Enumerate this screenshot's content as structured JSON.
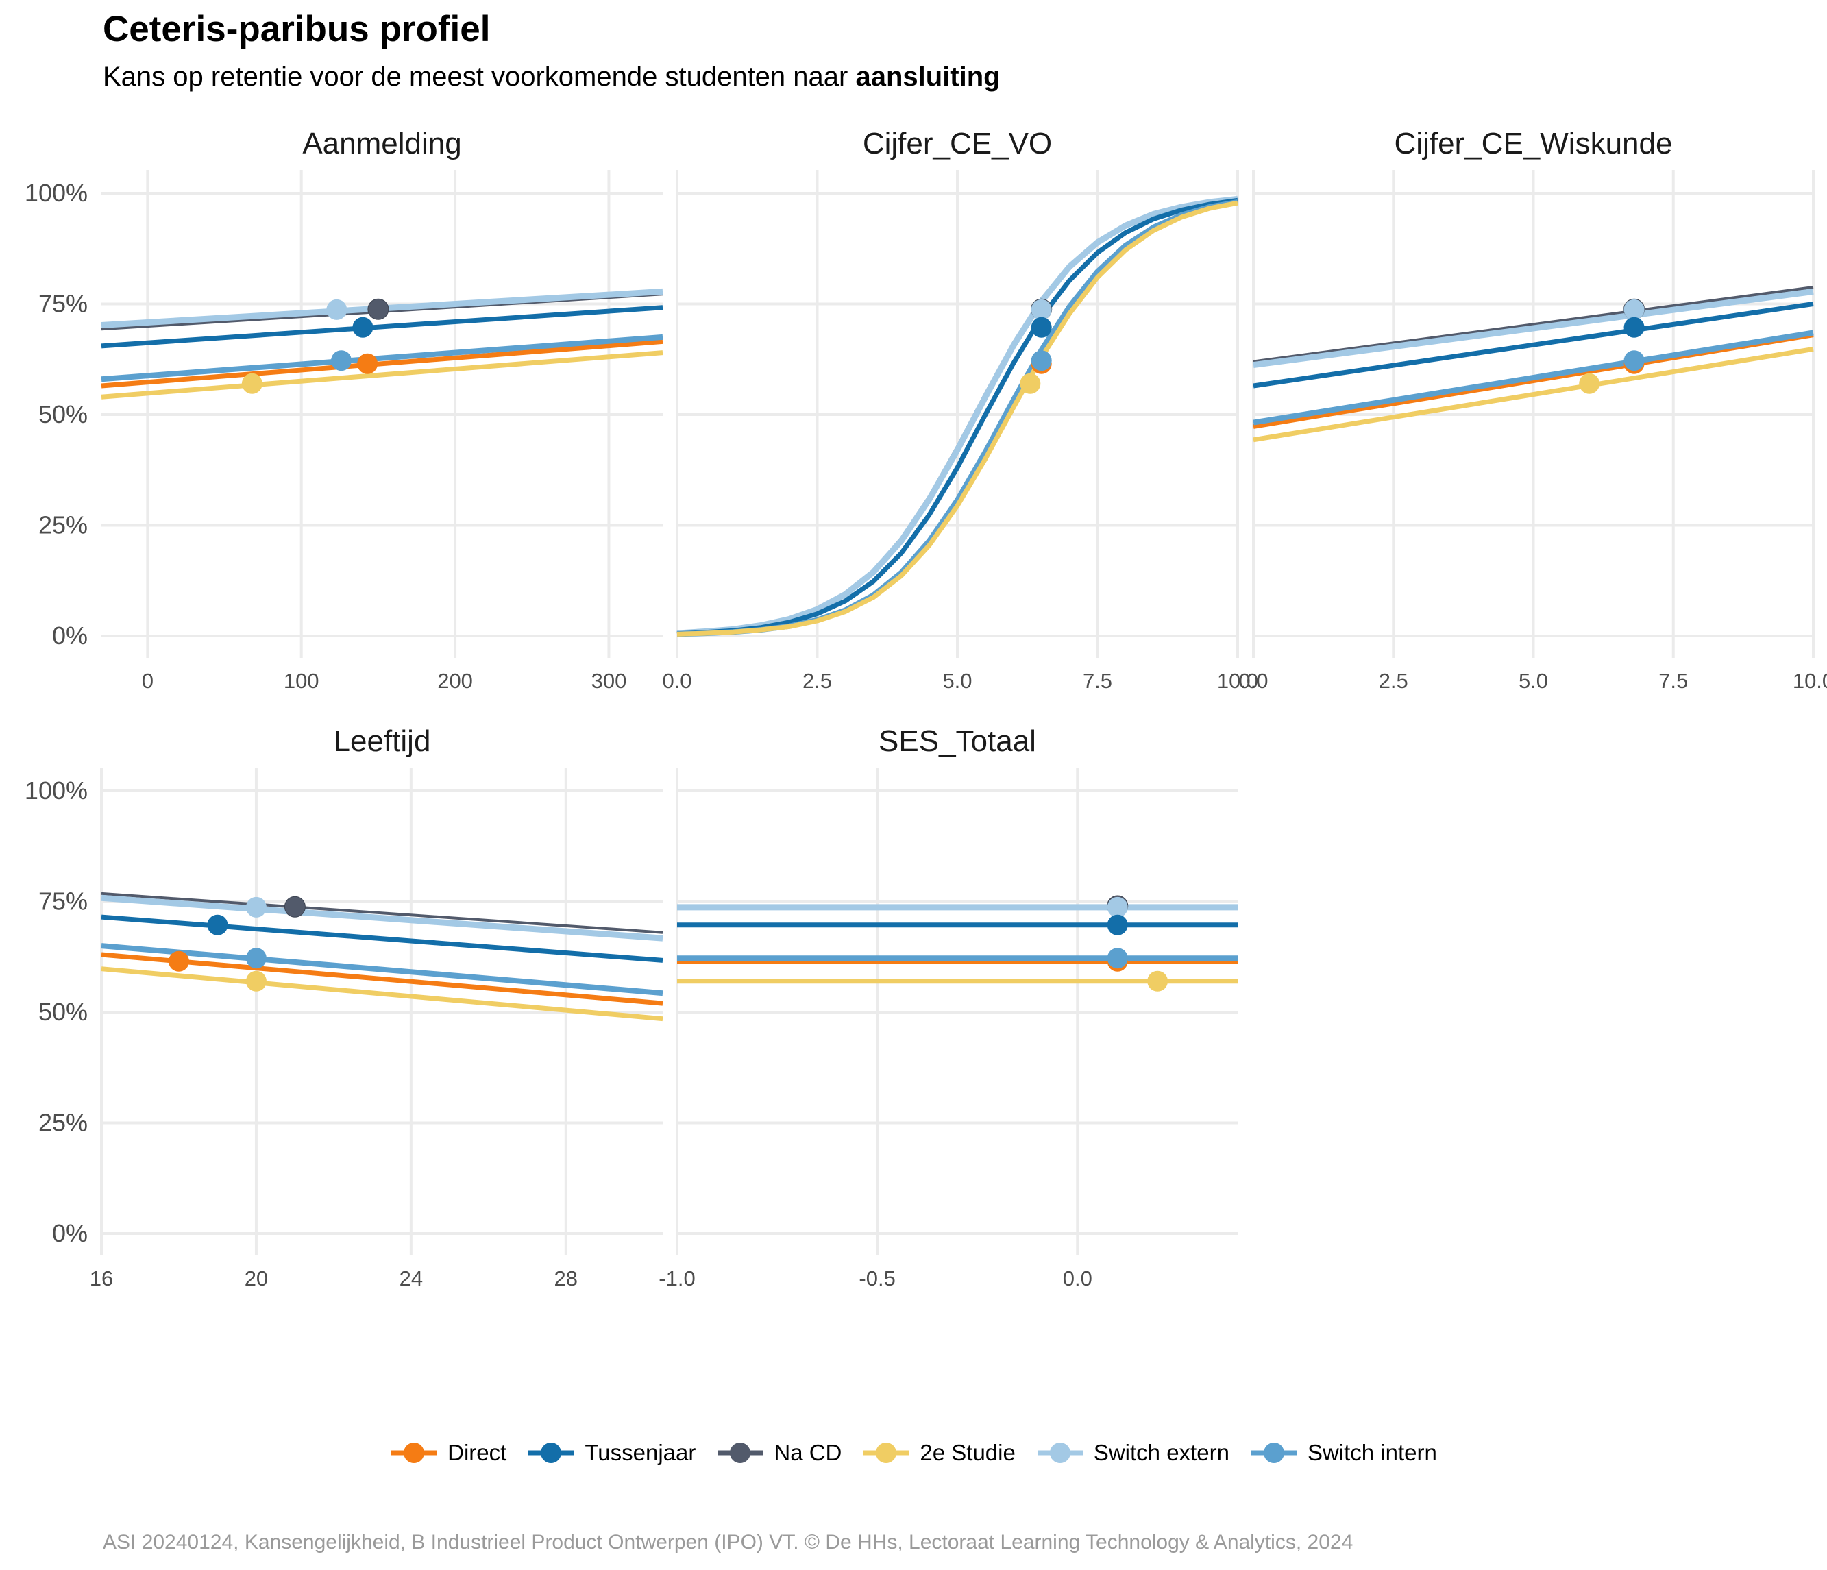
{
  "title": "Ceteris-paribus profiel",
  "subtitle_prefix": "Kans op retentie voor de meest voorkomende studenten naar ",
  "subtitle_emphasis": "aansluiting",
  "caption": "ASI 20240124, Kansengelijkheid, B Industrieel Product Ontwerpen (IPO) VT. © De HHs, Lectoraat Learning Technology & Analytics, 2024",
  "legend": [
    {
      "name": "Direct",
      "color": "#F57C14"
    },
    {
      "name": "Tussenjaar",
      "color": "#136EA9"
    },
    {
      "name": "Na CD",
      "color": "#525A6B"
    },
    {
      "name": "2e Studie",
      "color": "#F0CD63"
    },
    {
      "name": "Switch extern",
      "color": "#A3C9E5"
    },
    {
      "name": "Switch intern",
      "color": "#5BA0CF"
    }
  ],
  "chart_data": [
    {
      "type": "line",
      "title": "Aanmelding",
      "xlim": [
        -30,
        335
      ],
      "xticks": [
        0,
        100,
        200,
        300
      ],
      "ylim": [
        0,
        1
      ],
      "yticks": [
        "0%",
        "25%",
        "50%",
        "75%",
        "100%"
      ],
      "grid": true,
      "series": [
        {
          "name": "Direct",
          "x": [
            -30,
            335
          ],
          "y": [
            0.565,
            0.665
          ],
          "point": [
            143,
            0.615
          ]
        },
        {
          "name": "Tussenjaar",
          "x": [
            -30,
            335
          ],
          "y": [
            0.655,
            0.742
          ],
          "point": [
            140,
            0.697
          ]
        },
        {
          "name": "Na CD",
          "x": [
            -30,
            335
          ],
          "y": [
            0.693,
            0.772
          ],
          "point": [
            150,
            0.738
          ]
        },
        {
          "name": "2e Studie",
          "x": [
            -30,
            335
          ],
          "y": [
            0.54,
            0.64
          ],
          "point": [
            68,
            0.57
          ]
        },
        {
          "name": "Switch extern",
          "x": [
            -30,
            335
          ],
          "y": [
            0.702,
            0.778
          ],
          "point": [
            123,
            0.737
          ]
        },
        {
          "name": "Switch intern",
          "x": [
            -30,
            335
          ],
          "y": [
            0.58,
            0.675
          ],
          "point": [
            126,
            0.622
          ]
        }
      ]
    },
    {
      "type": "line",
      "title": "Cijfer_CE_VO",
      "xlim": [
        0,
        10
      ],
      "xticks": [
        "0.0",
        "2.5",
        "5.0",
        "7.5",
        "10.0"
      ],
      "ylim": [
        0,
        1
      ],
      "yticks": [
        "0%",
        "25%",
        "50%",
        "75%",
        "100%"
      ],
      "grid": true,
      "series": [
        {
          "name": "Direct",
          "x": [
            0,
            0.5,
            1,
            1.5,
            2,
            2.5,
            3,
            3.5,
            4,
            4.5,
            5,
            5.5,
            6,
            6.5,
            7,
            7.5,
            8,
            8.5,
            9,
            9.5,
            10
          ],
          "y": [
            0.004,
            0.006,
            0.009,
            0.014,
            0.022,
            0.036,
            0.058,
            0.092,
            0.143,
            0.215,
            0.307,
            0.416,
            0.533,
            0.646,
            0.744,
            0.823,
            0.882,
            0.923,
            0.951,
            0.969,
            0.98
          ],
          "point": [
            6.5,
            0.615
          ]
        },
        {
          "name": "Tussenjaar",
          "x": [
            0,
            0.5,
            1,
            1.5,
            2,
            2.5,
            3,
            3.5,
            4,
            4.5,
            5,
            5.5,
            6,
            6.5,
            7,
            7.5,
            8,
            8.5,
            9,
            9.5,
            10
          ],
          "y": [
            0.005,
            0.008,
            0.012,
            0.019,
            0.031,
            0.05,
            0.079,
            0.123,
            0.187,
            0.274,
            0.38,
            0.5,
            0.616,
            0.72,
            0.803,
            0.866,
            0.911,
            0.942,
            0.962,
            0.975,
            0.984
          ],
          "point": [
            6.5,
            0.697
          ]
        },
        {
          "name": "Na CD",
          "x": [
            0,
            0.5,
            1,
            1.5,
            2,
            2.5,
            3,
            3.5,
            4,
            4.5,
            5,
            5.5,
            6,
            6.5,
            7,
            7.5,
            8,
            8.5,
            9,
            9.5,
            10
          ],
          "y": [
            0.007,
            0.01,
            0.016,
            0.025,
            0.039,
            0.062,
            0.097,
            0.148,
            0.221,
            0.316,
            0.428,
            0.548,
            0.663,
            0.762,
            0.838,
            0.892,
            0.929,
            0.954,
            0.97,
            0.98,
            0.987
          ],
          "point": [
            6.5,
            0.738
          ]
        },
        {
          "name": "2e Studie",
          "x": [
            0,
            0.5,
            1,
            1.5,
            2,
            2.5,
            3,
            3.5,
            4,
            4.5,
            5,
            5.5,
            6,
            6.5,
            7,
            7.5,
            8,
            8.5,
            9,
            9.5,
            10
          ],
          "y": [
            0.004,
            0.006,
            0.009,
            0.014,
            0.021,
            0.034,
            0.055,
            0.087,
            0.136,
            0.205,
            0.294,
            0.4,
            0.516,
            0.629,
            0.728,
            0.81,
            0.872,
            0.916,
            0.946,
            0.966,
            0.978
          ],
          "point": [
            6.3,
            0.57
          ]
        },
        {
          "name": "Switch extern",
          "x": [
            0,
            0.5,
            1,
            1.5,
            2,
            2.5,
            3,
            3.5,
            4,
            4.5,
            5,
            5.5,
            6,
            6.5,
            7,
            7.5,
            8,
            8.5,
            9,
            9.5,
            10
          ],
          "y": [
            0.006,
            0.01,
            0.015,
            0.024,
            0.038,
            0.06,
            0.094,
            0.144,
            0.215,
            0.309,
            0.42,
            0.54,
            0.656,
            0.756,
            0.834,
            0.889,
            0.927,
            0.953,
            0.969,
            0.98,
            0.987
          ],
          "point": [
            6.5,
            0.737
          ]
        },
        {
          "name": "Switch intern",
          "x": [
            0,
            0.5,
            1,
            1.5,
            2,
            2.5,
            3,
            3.5,
            4,
            4.5,
            5,
            5.5,
            6,
            6.5,
            7,
            7.5,
            8,
            8.5,
            9,
            9.5,
            10
          ],
          "y": [
            0.004,
            0.006,
            0.009,
            0.014,
            0.022,
            0.036,
            0.058,
            0.092,
            0.143,
            0.215,
            0.307,
            0.416,
            0.533,
            0.646,
            0.744,
            0.823,
            0.882,
            0.923,
            0.951,
            0.969,
            0.98
          ],
          "point": [
            6.5,
            0.622
          ]
        }
      ]
    },
    {
      "type": "line",
      "title": "Cijfer_CE_Wiskunde",
      "xlim": [
        0,
        10
      ],
      "xticks": [
        "0.0",
        "2.5",
        "5.0",
        "7.5",
        "10.0"
      ],
      "ylim": [
        0,
        1
      ],
      "yticks": [
        "0%",
        "25%",
        "50%",
        "75%",
        "100%"
      ],
      "grid": true,
      "series": [
        {
          "name": "Direct",
          "x": [
            0,
            10
          ],
          "y": [
            0.473,
            0.68
          ],
          "point": [
            6.8,
            0.615
          ]
        },
        {
          "name": "Tussenjaar",
          "x": [
            0,
            10
          ],
          "y": [
            0.565,
            0.75
          ],
          "point": [
            6.8,
            0.697
          ]
        },
        {
          "name": "Na CD",
          "x": [
            0,
            10
          ],
          "y": [
            0.62,
            0.788
          ],
          "point": [
            6.8,
            0.738
          ]
        },
        {
          "name": "2e Studie",
          "x": [
            0,
            10
          ],
          "y": [
            0.443,
            0.648
          ],
          "point": [
            6.0,
            0.57
          ]
        },
        {
          "name": "Switch extern",
          "x": [
            0,
            10
          ],
          "y": [
            0.612,
            0.778
          ],
          "point": [
            6.8,
            0.737
          ]
        },
        {
          "name": "Switch intern",
          "x": [
            0,
            10
          ],
          "y": [
            0.482,
            0.685
          ],
          "point": [
            6.8,
            0.622
          ]
        }
      ]
    },
    {
      "type": "line",
      "title": "Leeftijd",
      "xlim": [
        16,
        30.5
      ],
      "xticks": [
        16,
        20,
        24,
        28
      ],
      "ylim": [
        0,
        1
      ],
      "yticks": [
        "0%",
        "25%",
        "50%",
        "75%",
        "100%"
      ],
      "grid": true,
      "series": [
        {
          "name": "Direct",
          "x": [
            16,
            30.5
          ],
          "y": [
            0.63,
            0.52
          ],
          "point": [
            18,
            0.615
          ]
        },
        {
          "name": "Tussenjaar",
          "x": [
            16,
            30.5
          ],
          "y": [
            0.715,
            0.617
          ],
          "point": [
            19,
            0.697
          ]
        },
        {
          "name": "Na CD",
          "x": [
            16,
            30.5
          ],
          "y": [
            0.768,
            0.68
          ],
          "point": [
            21,
            0.738
          ]
        },
        {
          "name": "2e Studie",
          "x": [
            16,
            30.5
          ],
          "y": [
            0.598,
            0.485
          ],
          "point": [
            20,
            0.57
          ]
        },
        {
          "name": "Switch extern",
          "x": [
            16,
            30.5
          ],
          "y": [
            0.758,
            0.667
          ],
          "point": [
            20,
            0.737
          ]
        },
        {
          "name": "Switch intern",
          "x": [
            16,
            30.5
          ],
          "y": [
            0.65,
            0.543
          ],
          "point": [
            20,
            0.622
          ]
        }
      ]
    },
    {
      "type": "line",
      "title": "SES_Totaal",
      "xlim": [
        -1.0,
        0.4
      ],
      "xticks": [
        "-1.0",
        "-0.5",
        "0.0"
      ],
      "ylim": [
        0,
        1
      ],
      "yticks": [
        "0%",
        "25%",
        "50%",
        "75%",
        "100%"
      ],
      "grid": true,
      "series": [
        {
          "name": "Direct",
          "x": [
            -1.0,
            0.4
          ],
          "y": [
            0.615,
            0.615
          ],
          "point": [
            0.1,
            0.615
          ]
        },
        {
          "name": "Tussenjaar",
          "x": [
            -1.0,
            0.4
          ],
          "y": [
            0.697,
            0.697
          ],
          "point": [
            0.1,
            0.697
          ]
        },
        {
          "name": "Na CD",
          "x": [
            -1.0,
            0.4
          ],
          "y": [
            0.74,
            0.74
          ],
          "point": [
            0.1,
            0.74
          ]
        },
        {
          "name": "2e Studie",
          "x": [
            -1.0,
            0.4
          ],
          "y": [
            0.57,
            0.57
          ],
          "point": [
            0.2,
            0.57
          ]
        },
        {
          "name": "Switch extern",
          "x": [
            -1.0,
            0.4
          ],
          "y": [
            0.737,
            0.737
          ],
          "point": [
            0.1,
            0.737
          ]
        },
        {
          "name": "Switch intern",
          "x": [
            -1.0,
            0.4
          ],
          "y": [
            0.622,
            0.622
          ],
          "point": [
            0.1,
            0.622
          ]
        }
      ]
    }
  ]
}
